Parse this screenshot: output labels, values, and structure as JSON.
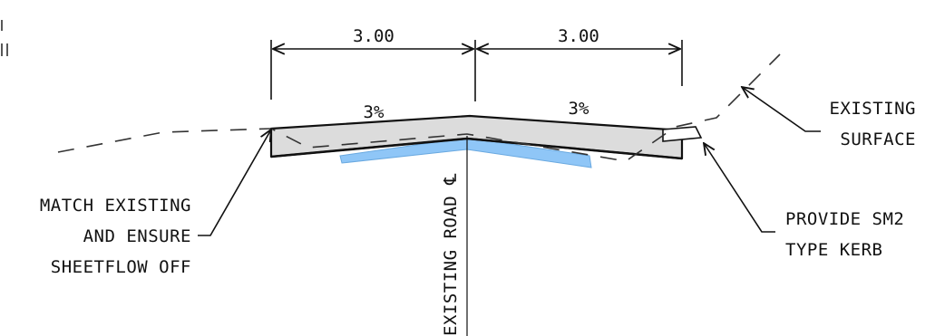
{
  "dimensions": {
    "left_width": "3.00",
    "right_width": "3.00"
  },
  "crossfall": {
    "left": "3%",
    "right": "3%"
  },
  "labels": {
    "match_line1": "MATCH EXISTING",
    "match_line2": "AND ENSURE",
    "match_line3": "SHEETFLOW OFF",
    "existing_line1": "EXISTING",
    "existing_line2": "SURFACE",
    "kerb_line1": "PROVIDE SM2",
    "kerb_line2": "TYPE KERB",
    "road_centerline": "EXISTING ROAD ℄"
  },
  "colors": {
    "pavement_fill": "#dcdcdc",
    "subgrade_fill": "#8fc6f7",
    "line": "#111111",
    "existing_dash": "#555555"
  }
}
